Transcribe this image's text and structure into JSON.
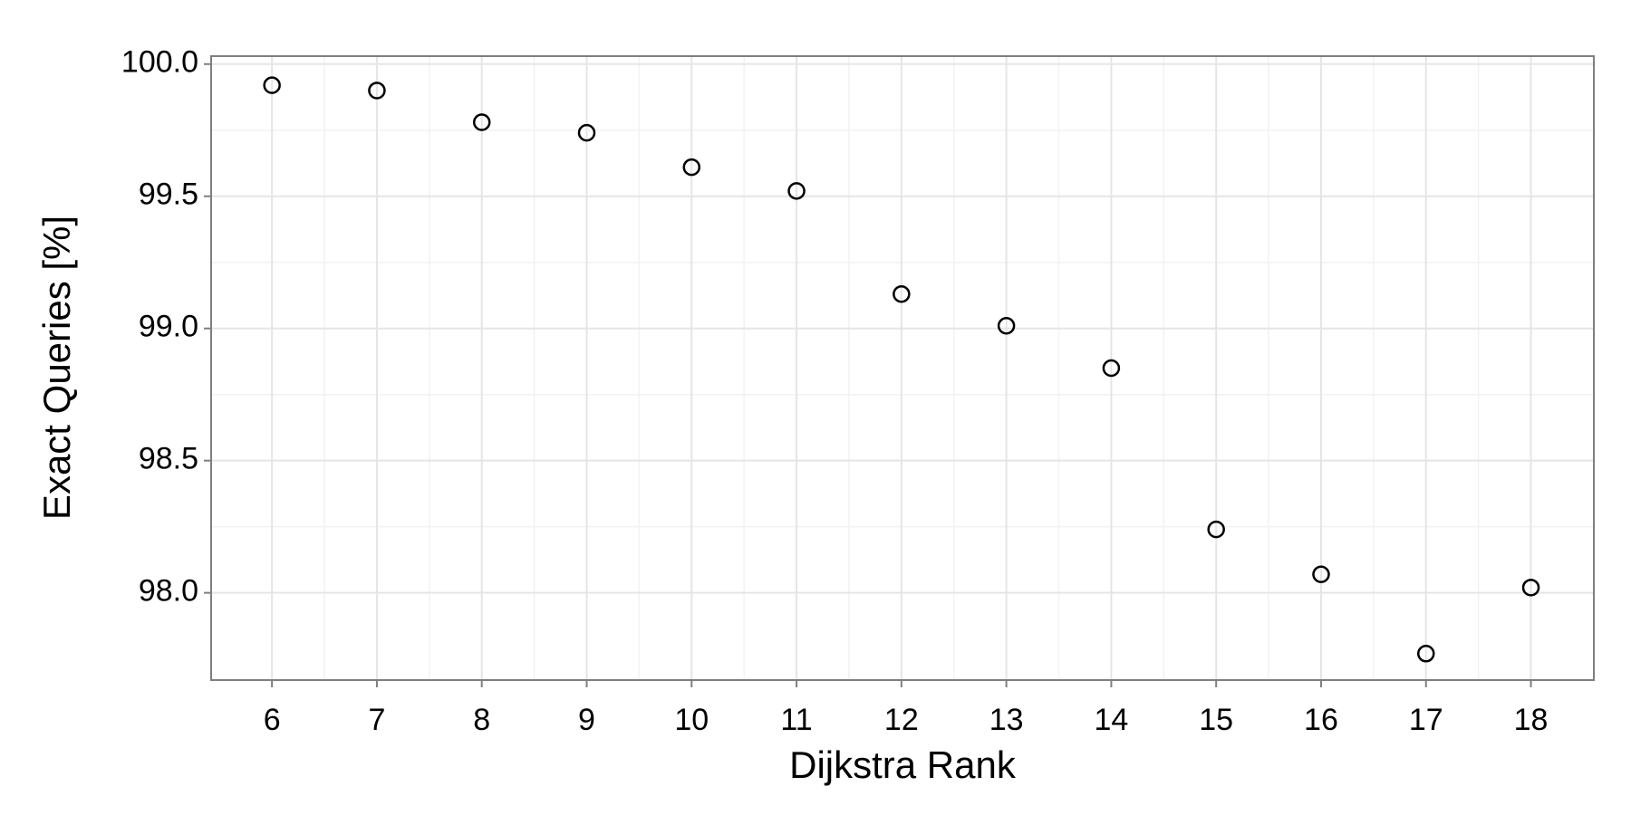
{
  "chart_data": {
    "type": "scatter",
    "x_label": "Dijkstra Rank",
    "y_label": "Exact Queries [%]",
    "x": [
      6,
      7,
      8,
      9,
      10,
      11,
      12,
      13,
      14,
      15,
      16,
      17,
      18
    ],
    "values": [
      99.92,
      99.9,
      99.78,
      99.74,
      99.61,
      99.52,
      99.13,
      99.01,
      98.85,
      98.24,
      98.07,
      97.77,
      98.02
    ],
    "color": "#000000",
    "xlim": [
      5.42,
      18.6
    ],
    "ylim": [
      97.67,
      100.03
    ],
    "xticks": [
      6,
      7,
      8,
      9,
      10,
      11,
      12,
      13,
      14,
      15,
      16,
      17,
      18
    ],
    "yticks": [
      {
        "value": 98,
        "label": "98.0"
      },
      98.5,
      {
        "value": 99,
        "label": "99.0"
      },
      99.5,
      {
        "value": 100,
        "label": "100.0"
      }
    ],
    "grid": true
  }
}
